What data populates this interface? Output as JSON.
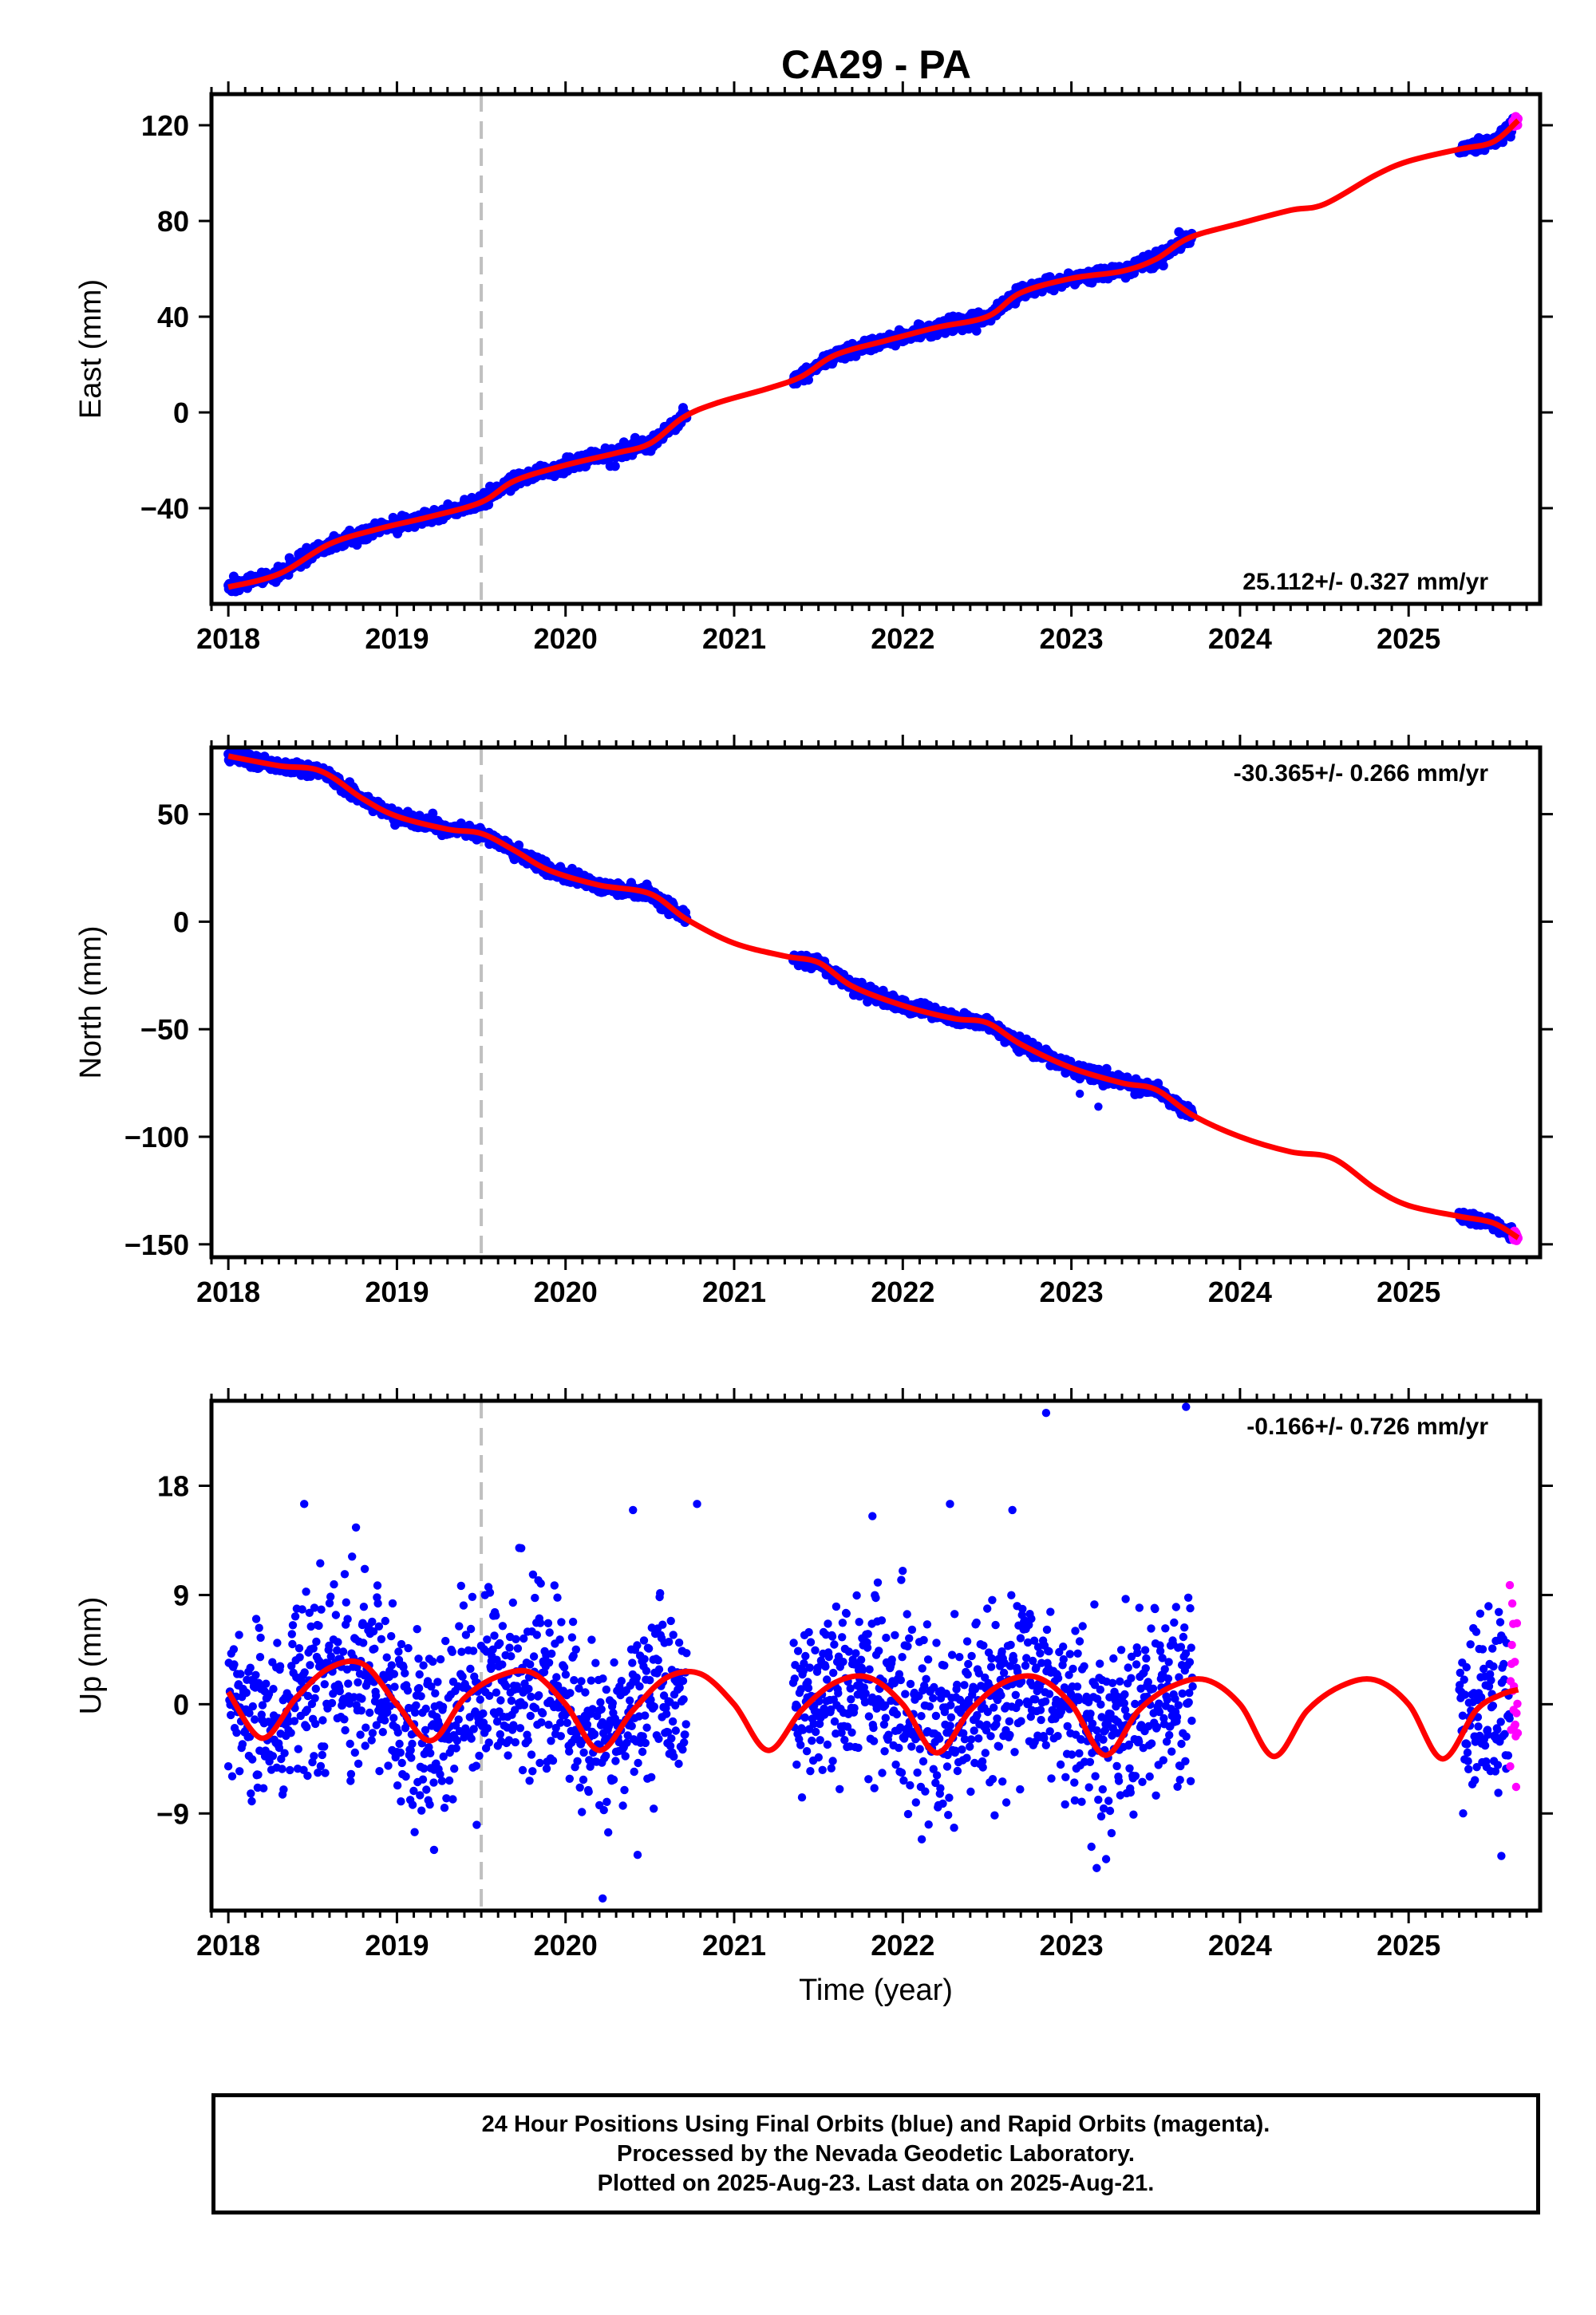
{
  "title": "CA29 - PA",
  "colors": {
    "final_orbits": "#0000ff",
    "rapid_orbits": "#ff00ff",
    "model_fit": "#ff0000",
    "event_marker": "#c0c0c0",
    "frame": "#000000"
  },
  "chart_data": [
    {
      "type": "scatter",
      "component": "East",
      "ylabel": "East (mm)",
      "xlabel": "",
      "xlim": [
        2017.9,
        2025.78
      ],
      "ylim": [
        -80,
        133
      ],
      "xticks": [
        2018,
        2019,
        2020,
        2021,
        2022,
        2023,
        2024,
        2025
      ],
      "xtick_labels": [
        "2018",
        "2019",
        "2020",
        "2021",
        "2022",
        "2023",
        "2024",
        "2025"
      ],
      "yticks": [
        -40,
        0,
        40,
        80,
        120
      ],
      "ytick_labels": [
        "−40",
        "0",
        "40",
        "80",
        "120"
      ],
      "grid": false,
      "rate_text": "25.112+/- 0.327 mm/yr",
      "rate_position": "bottom-right",
      "event_marker_x": 2019.5,
      "fit_points": [
        [
          2018.0,
          -73.0
        ],
        [
          2018.3,
          -67.5
        ],
        [
          2018.6,
          -55.0
        ],
        [
          2018.9,
          -48.5
        ],
        [
          2019.2,
          -43.5
        ],
        [
          2019.5,
          -37.5
        ],
        [
          2019.7,
          -28.5
        ],
        [
          2020.0,
          -22.0
        ],
        [
          2020.3,
          -17.0
        ],
        [
          2020.5,
          -13.0
        ],
        [
          2020.7,
          -2.0
        ],
        [
          2020.9,
          4.0
        ],
        [
          2021.2,
          10.0
        ],
        [
          2021.4,
          15.0
        ],
        [
          2021.6,
          24.0
        ],
        [
          2021.9,
          30.0
        ],
        [
          2022.2,
          35.5
        ],
        [
          2022.5,
          40.0
        ],
        [
          2022.7,
          50.0
        ],
        [
          2023.0,
          56.0
        ],
        [
          2023.3,
          59.0
        ],
        [
          2023.5,
          64.0
        ],
        [
          2023.7,
          73.0
        ],
        [
          2024.0,
          79.0
        ],
        [
          2024.3,
          84.5
        ],
        [
          2024.5,
          87.0
        ],
        [
          2024.8,
          99.0
        ],
        [
          2025.0,
          105.0
        ],
        [
          2025.3,
          110.0
        ],
        [
          2025.5,
          113.0
        ],
        [
          2025.65,
          122.0
        ]
      ],
      "segments": [
        {
          "start": 2018.0,
          "end": 2020.72,
          "series": "final"
        },
        {
          "start": 2021.35,
          "end": 2023.72,
          "series": "final"
        },
        {
          "start": 2025.3,
          "end": 2025.62,
          "series": "final"
        },
        {
          "start": 2025.62,
          "end": 2025.65,
          "series": "rapid"
        }
      ],
      "scatter_sd": 1.4,
      "outliers": []
    },
    {
      "type": "scatter",
      "component": "North",
      "ylabel": "North (mm)",
      "xlabel": "",
      "xlim": [
        2017.9,
        2025.78
      ],
      "ylim": [
        -156,
        81
      ],
      "xticks": [
        2018,
        2019,
        2020,
        2021,
        2022,
        2023,
        2024,
        2025
      ],
      "xtick_labels": [
        "2018",
        "2019",
        "2020",
        "2021",
        "2022",
        "2023",
        "2024",
        "2025"
      ],
      "yticks": [
        -150,
        -100,
        -50,
        0,
        50
      ],
      "ytick_labels": [
        "−150",
        "−100",
        "−50",
        "0",
        "50"
      ],
      "grid": false,
      "rate_text": "-30.365+/- 0.266 mm/yr",
      "rate_position": "top-right",
      "event_marker_x": 2019.5,
      "fit_points": [
        [
          2018.0,
          77.0
        ],
        [
          2018.3,
          72.5
        ],
        [
          2018.55,
          70.0
        ],
        [
          2018.8,
          57.0
        ],
        [
          2019.0,
          49.0
        ],
        [
          2019.3,
          43.0
        ],
        [
          2019.5,
          41.0
        ],
        [
          2019.7,
          33.0
        ],
        [
          2019.9,
          24.0
        ],
        [
          2020.2,
          17.0
        ],
        [
          2020.5,
          13.0
        ],
        [
          2020.72,
          1.0
        ],
        [
          2021.0,
          -10.0
        ],
        [
          2021.3,
          -16.0
        ],
        [
          2021.5,
          -19.0
        ],
        [
          2021.7,
          -30.0
        ],
        [
          2022.0,
          -39.0
        ],
        [
          2022.3,
          -45.0
        ],
        [
          2022.5,
          -47.0
        ],
        [
          2022.7,
          -57.0
        ],
        [
          2023.0,
          -68.0
        ],
        [
          2023.3,
          -75.0
        ],
        [
          2023.5,
          -78.0
        ],
        [
          2023.72,
          -90.0
        ],
        [
          2024.0,
          -100.0
        ],
        [
          2024.3,
          -107.0
        ],
        [
          2024.55,
          -110.0
        ],
        [
          2024.8,
          -124.0
        ],
        [
          2025.0,
          -132.0
        ],
        [
          2025.3,
          -137.0
        ],
        [
          2025.5,
          -140.0
        ],
        [
          2025.65,
          -147.0
        ]
      ],
      "segments": [
        {
          "start": 2018.0,
          "end": 2020.72,
          "series": "final"
        },
        {
          "start": 2021.35,
          "end": 2023.72,
          "series": "final"
        },
        {
          "start": 2025.3,
          "end": 2025.62,
          "series": "final"
        },
        {
          "start": 2025.62,
          "end": 2025.65,
          "series": "rapid"
        }
      ],
      "scatter_sd": 1.5,
      "outliers": [
        [
          2023.16,
          -86.0
        ],
        [
          2023.05,
          -80.0
        ]
      ]
    },
    {
      "type": "scatter",
      "component": "Up",
      "ylabel": "Up (mm)",
      "xlabel": "Time (year)",
      "xlim": [
        2017.9,
        2025.78
      ],
      "ylim": [
        -17,
        25
      ],
      "xticks": [
        2018,
        2019,
        2020,
        2021,
        2022,
        2023,
        2024,
        2025
      ],
      "xtick_labels": [
        "2018",
        "2019",
        "2020",
        "2021",
        "2022",
        "2023",
        "2024",
        "2025"
      ],
      "yticks": [
        -9,
        0,
        9,
        18
      ],
      "ytick_labels": [
        "−9",
        "0",
        "9",
        "18"
      ],
      "grid": false,
      "rate_text": "-0.166+/- 0.726 mm/yr",
      "rate_position": "top-right",
      "event_marker_x": 2019.5,
      "fit_points": [
        [
          2018.0,
          1.0
        ],
        [
          2018.2,
          -2.8
        ],
        [
          2018.4,
          0.5
        ],
        [
          2018.6,
          3.0
        ],
        [
          2018.8,
          3.3
        ],
        [
          2019.0,
          0.0
        ],
        [
          2019.2,
          -3.0
        ],
        [
          2019.4,
          0.5
        ],
        [
          2019.6,
          2.3
        ],
        [
          2019.8,
          2.6
        ],
        [
          2020.0,
          0.0
        ],
        [
          2020.2,
          -3.8
        ],
        [
          2020.4,
          -0.5
        ],
        [
          2020.6,
          2.2
        ],
        [
          2020.8,
          2.5
        ],
        [
          2021.0,
          0.0
        ],
        [
          2021.2,
          -3.8
        ],
        [
          2021.4,
          -0.5
        ],
        [
          2021.6,
          1.8
        ],
        [
          2021.8,
          2.2
        ],
        [
          2022.0,
          0.0
        ],
        [
          2022.2,
          -4.0
        ],
        [
          2022.4,
          -0.5
        ],
        [
          2022.6,
          1.8
        ],
        [
          2022.8,
          2.2
        ],
        [
          2023.0,
          0.0
        ],
        [
          2023.2,
          -4.2
        ],
        [
          2023.4,
          -0.5
        ],
        [
          2023.6,
          1.5
        ],
        [
          2023.8,
          2.0
        ],
        [
          2024.0,
          0.0
        ],
        [
          2024.2,
          -4.3
        ],
        [
          2024.4,
          -0.5
        ],
        [
          2024.6,
          1.5
        ],
        [
          2024.8,
          2.0
        ],
        [
          2025.0,
          0.0
        ],
        [
          2025.2,
          -4.5
        ],
        [
          2025.4,
          -0.5
        ],
        [
          2025.55,
          0.8
        ],
        [
          2025.65,
          1.2
        ]
      ],
      "segments": [
        {
          "start": 2018.0,
          "end": 2020.72,
          "series": "final"
        },
        {
          "start": 2021.35,
          "end": 2023.72,
          "series": "final"
        },
        {
          "start": 2025.3,
          "end": 2025.6,
          "series": "final"
        },
        {
          "start": 2025.6,
          "end": 2025.65,
          "series": "rapid"
        }
      ],
      "scatter_sd": 3.6,
      "outliers": [
        [
          2022.85,
          24.0
        ],
        [
          2023.68,
          24.5
        ],
        [
          2020.22,
          -16.0
        ],
        [
          2020.78,
          16.5
        ],
        [
          2020.4,
          16.0
        ],
        [
          2021.82,
          15.5
        ],
        [
          2022.28,
          16.5
        ],
        [
          2022.65,
          16.0
        ],
        [
          2018.45,
          16.5
        ],
        [
          2019.22,
          -12.0
        ],
        [
          2023.15,
          -13.5
        ],
        [
          2025.55,
          -12.5
        ]
      ]
    }
  ],
  "footer": {
    "line1": "24 Hour Positions Using Final Orbits (blue) and Rapid Orbits (magenta).",
    "line2": "Processed by the Nevada Geodetic Laboratory.",
    "line3": "Plotted on 2025-Aug-23. Last data on 2025-Aug-21."
  }
}
